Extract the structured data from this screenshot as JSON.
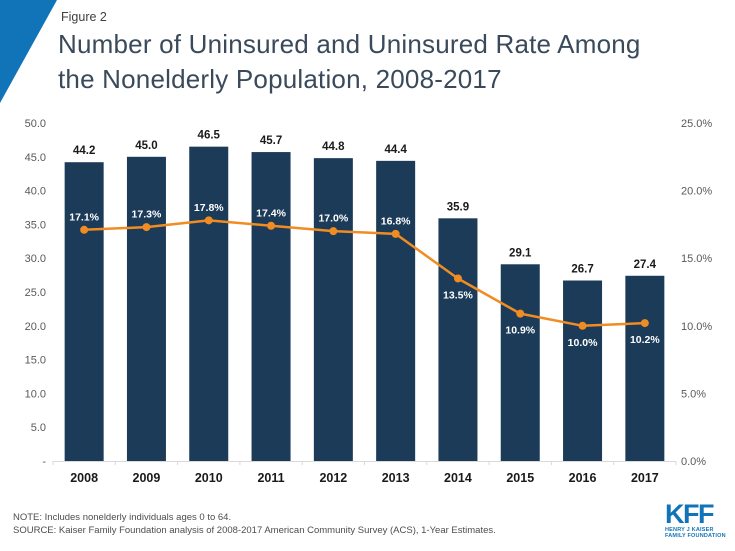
{
  "header": {
    "figure_label": "Figure 2",
    "title_line1": "Number of Uninsured and Uninsured Rate Among",
    "title_line2": "the Nonelderly Population, 2008-2017"
  },
  "colors": {
    "accent_blue": "#1274b8",
    "bar_navy": "#1b3b58",
    "line_orange": "#f08c22",
    "axis_text": "#595959",
    "axis_line": "#d9d9d9",
    "year_text": "#1a1a1a",
    "bar_label_text": "#1a1a1a",
    "rate_label_text": "#ffffff"
  },
  "chart_data": {
    "type": "bar",
    "subtype": "combo-bar-line",
    "title": "Number of Uninsured and Uninsured Rate Among the Nonelderly Population, 2008-2017",
    "categories": [
      "2008",
      "2009",
      "2010",
      "2011",
      "2012",
      "2013",
      "2014",
      "2015",
      "2016",
      "2017"
    ],
    "series": [
      {
        "name": "Number of Uninsured (millions)",
        "type": "bar",
        "axis": "left",
        "values": [
          44.2,
          45.0,
          46.5,
          45.7,
          44.8,
          44.4,
          35.9,
          29.1,
          26.7,
          27.4
        ],
        "labels": [
          "44.2",
          "45.0",
          "46.5",
          "45.7",
          "44.8",
          "44.4",
          "35.9",
          "29.1",
          "26.7",
          "27.4"
        ]
      },
      {
        "name": "Uninsured Rate (%)",
        "type": "line",
        "axis": "right",
        "values": [
          17.1,
          17.3,
          17.8,
          17.4,
          17.0,
          16.8,
          13.5,
          10.9,
          10.0,
          10.2
        ],
        "labels": [
          "17.1%",
          "17.3%",
          "17.8%",
          "17.4%",
          "17.0%",
          "16.8%",
          "13.5%",
          "10.9%",
          "10.0%",
          "10.2%"
        ],
        "label_side": [
          "above",
          "above",
          "above",
          "above",
          "above",
          "above",
          "below",
          "below",
          "below",
          "below"
        ]
      }
    ],
    "left_axis": {
      "min": 0,
      "max": 50,
      "tick_values": [
        0,
        5,
        10,
        15,
        20,
        25,
        30,
        35,
        40,
        45,
        50
      ],
      "tick_labels": [
        "-",
        "5.0",
        "10.0",
        "15.0",
        "20.0",
        "25.0",
        "30.0",
        "35.0",
        "40.0",
        "45.0",
        "50.0"
      ]
    },
    "right_axis": {
      "min": 0,
      "max": 25,
      "tick_values": [
        0,
        5,
        10,
        15,
        20,
        25
      ],
      "tick_labels": [
        "0.0%",
        "5.0%",
        "10.0%",
        "15.0%",
        "20.0%",
        "25.0%"
      ]
    },
    "grid": false,
    "legend": "none"
  },
  "footer": {
    "note": "NOTE: Includes nonelderly individuals ages 0 to 64.",
    "source": "SOURCE: Kaiser Family Foundation analysis of 2008-2017 American Community Survey (ACS), 1-Year Estimates."
  },
  "logo": {
    "text": "KFF",
    "tagline_line1": "HENRY J KAISER",
    "tagline_line2": "FAMILY FOUNDATION"
  }
}
